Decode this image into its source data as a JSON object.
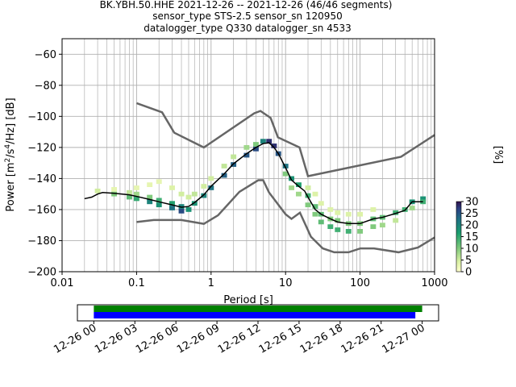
{
  "title_lines": [
    "BK.YBH.50.HHE   2021-12-26 -- 2021-12-26  (46/46 segments)",
    "sensor_type STS-2.5 sensor_sn 120950",
    "datalogger_type Q330 datalogger_sn 4533"
  ],
  "colors": {
    "mean": "#000000",
    "noise_models": "#666666",
    "grid": "#b0b0b0",
    "bar_top": "#008000",
    "bar_bottom": "#0000ff"
  },
  "chart_data": [
    {
      "type": "heatmap",
      "xlabel": "Period [s]",
      "ylabel_parts": [
        "Power [m",
        "2",
        "/s",
        "4",
        "/Hz] [dB]"
      ],
      "xscale": "log",
      "xlim": [
        0.01,
        1000
      ],
      "ylim": [
        -200,
        -50
      ],
      "xticks": [
        0.01,
        0.1,
        1,
        10,
        100,
        1000
      ],
      "xtick_labels": [
        "0.01",
        "0.1",
        "1",
        "10",
        "100",
        "1000"
      ],
      "yticks": [
        -200,
        -180,
        -160,
        -140,
        -120,
        -100,
        -80,
        -60
      ],
      "ytick_labels": [
        "−200",
        "−180",
        "−160",
        "−140",
        "−120",
        "−100",
        "−80",
        "−60"
      ],
      "grid": true,
      "colorbar": {
        "label": "[%]",
        "ticks": [
          0,
          5,
          10,
          15,
          20,
          25,
          30
        ],
        "range": [
          0,
          30
        ]
      },
      "mean_curve": [
        [
          0.02,
          -153
        ],
        [
          0.025,
          -152
        ],
        [
          0.03,
          -150
        ],
        [
          0.035,
          -149
        ],
        [
          0.05,
          -149.5
        ],
        [
          0.08,
          -150.5
        ],
        [
          0.1,
          -151.5
        ],
        [
          0.15,
          -153.5
        ],
        [
          0.2,
          -155
        ],
        [
          0.3,
          -157
        ],
        [
          0.4,
          -158.5
        ],
        [
          0.5,
          -158
        ],
        [
          0.6,
          -155.5
        ],
        [
          0.8,
          -150.5
        ],
        [
          1,
          -145
        ],
        [
          1.5,
          -137
        ],
        [
          2,
          -130.5
        ],
        [
          3,
          -124
        ],
        [
          4,
          -120
        ],
        [
          5,
          -117.5
        ],
        [
          6,
          -117
        ],
        [
          7,
          -120
        ],
        [
          8,
          -124
        ],
        [
          10,
          -133
        ],
        [
          12,
          -141
        ],
        [
          15,
          -145
        ],
        [
          18,
          -148
        ],
        [
          20,
          -152
        ],
        [
          25,
          -160
        ],
        [
          30,
          -163
        ],
        [
          40,
          -166
        ],
        [
          50,
          -168
        ],
        [
          70,
          -169
        ],
        [
          100,
          -169
        ],
        [
          150,
          -166
        ],
        [
          200,
          -165
        ],
        [
          300,
          -162.5
        ],
        [
          400,
          -160.5
        ],
        [
          500,
          -155
        ],
        [
          700,
          -155
        ]
      ],
      "nhnm": [
        [
          0.1,
          -91.5
        ],
        [
          0.22,
          -97.4
        ],
        [
          0.32,
          -110.5
        ],
        [
          0.8,
          -120
        ],
        [
          3.8,
          -98
        ],
        [
          4.6,
          -96.5
        ],
        [
          6.3,
          -101
        ],
        [
          7.9,
          -113.5
        ],
        [
          15.4,
          -120
        ],
        [
          20,
          -138.5
        ],
        [
          354.8,
          -126
        ],
        [
          1000,
          -112
        ]
      ],
      "nlnm": [
        [
          0.1,
          -168
        ],
        [
          0.17,
          -166.7
        ],
        [
          0.4,
          -166.7
        ],
        [
          0.8,
          -169.2
        ],
        [
          1.24,
          -163.7
        ],
        [
          2.4,
          -148.6
        ],
        [
          4.3,
          -141.1
        ],
        [
          5,
          -141.1
        ],
        [
          6,
          -149
        ],
        [
          10,
          -163
        ],
        [
          12,
          -166
        ],
        [
          15.6,
          -162
        ],
        [
          21.9,
          -177.5
        ],
        [
          31.6,
          -185
        ],
        [
          45,
          -187.5
        ],
        [
          70,
          -187.5
        ],
        [
          101,
          -185
        ],
        [
          154,
          -185
        ],
        [
          328,
          -187.5
        ],
        [
          600,
          -184.4
        ],
        [
          1000,
          -178
        ]
      ],
      "histogram_cells": [
        [
          0.03,
          -148,
          5
        ],
        [
          0.05,
          -147,
          3
        ],
        [
          0.05,
          -150,
          10
        ],
        [
          0.08,
          -149,
          6
        ],
        [
          0.08,
          -152,
          12
        ],
        [
          0.1,
          -146,
          3
        ],
        [
          0.1,
          -150,
          8
        ],
        [
          0.1,
          -153,
          15
        ],
        [
          0.15,
          -144,
          3
        ],
        [
          0.15,
          -152,
          10
        ],
        [
          0.15,
          -155,
          20
        ],
        [
          0.2,
          -142,
          3
        ],
        [
          0.2,
          -154,
          14
        ],
        [
          0.2,
          -157,
          18
        ],
        [
          0.3,
          -146,
          4
        ],
        [
          0.3,
          -156,
          16
        ],
        [
          0.3,
          -159,
          22
        ],
        [
          0.4,
          -150,
          5
        ],
        [
          0.4,
          -158,
          20
        ],
        [
          0.4,
          -161,
          26
        ],
        [
          0.5,
          -152,
          5
        ],
        [
          0.5,
          -160,
          18
        ],
        [
          0.6,
          -150,
          6
        ],
        [
          0.6,
          -156,
          18
        ],
        [
          0.8,
          -145,
          5
        ],
        [
          0.8,
          -151,
          20
        ],
        [
          1,
          -140,
          5
        ],
        [
          1,
          -146,
          22
        ],
        [
          1.5,
          -132,
          6
        ],
        [
          1.5,
          -138,
          24
        ],
        [
          2,
          -126,
          6
        ],
        [
          2,
          -131,
          24
        ],
        [
          3,
          -120,
          8
        ],
        [
          3,
          -125,
          25
        ],
        [
          4,
          -118,
          10
        ],
        [
          4,
          -121,
          26
        ],
        [
          5,
          -116,
          20
        ],
        [
          6,
          -116,
          28
        ],
        [
          7,
          -119,
          28
        ],
        [
          8,
          -124,
          25
        ],
        [
          10,
          -132,
          22
        ],
        [
          10,
          -137,
          10
        ],
        [
          12,
          -140,
          18
        ],
        [
          12,
          -146,
          8
        ],
        [
          15,
          -144,
          16
        ],
        [
          15,
          -150,
          8
        ],
        [
          20,
          -151,
          14
        ],
        [
          20,
          -157,
          10
        ],
        [
          20,
          -146,
          5
        ],
        [
          25,
          -158,
          12
        ],
        [
          25,
          -163,
          10
        ],
        [
          25,
          -150,
          4
        ],
        [
          30,
          -163,
          12
        ],
        [
          30,
          -168,
          12
        ],
        [
          30,
          -156,
          4
        ],
        [
          40,
          -166,
          10
        ],
        [
          40,
          -171,
          14
        ],
        [
          40,
          -160,
          4
        ],
        [
          50,
          -167,
          10
        ],
        [
          50,
          -173,
          14
        ],
        [
          50,
          -162,
          4
        ],
        [
          70,
          -169,
          10
        ],
        [
          70,
          -174,
          14
        ],
        [
          70,
          -163,
          4
        ],
        [
          100,
          -169,
          10
        ],
        [
          100,
          -174,
          10
        ],
        [
          100,
          -163,
          4
        ],
        [
          150,
          -166,
          12
        ],
        [
          150,
          -171,
          10
        ],
        [
          150,
          -160,
          4
        ],
        [
          200,
          -165,
          12
        ],
        [
          200,
          -170,
          8
        ],
        [
          300,
          -162,
          14
        ],
        [
          300,
          -167,
          6
        ],
        [
          400,
          -160,
          14
        ],
        [
          500,
          -155,
          18
        ],
        [
          500,
          -159,
          8
        ],
        [
          700,
          -153,
          18
        ],
        [
          700,
          -155,
          14
        ]
      ]
    },
    {
      "type": "bar",
      "xtick_labels": [
        "12-26 00",
        "12-26 03",
        "12-26 06",
        "12-26 09",
        "12-26 12",
        "12-26 15",
        "12-26 18",
        "12-26 21",
        "12-27 00"
      ],
      "x_hours": [
        0,
        3,
        6,
        9,
        12,
        15,
        18,
        21,
        24
      ],
      "xlim_hours": [
        -1.2,
        25.2
      ],
      "bars": [
        {
          "row": "top",
          "start_hour": 0,
          "end_hour": 24,
          "color": "#008000"
        },
        {
          "row": "bottom",
          "start_hour": 0,
          "end_hour": 23.5,
          "color": "#0000ff"
        }
      ]
    }
  ]
}
